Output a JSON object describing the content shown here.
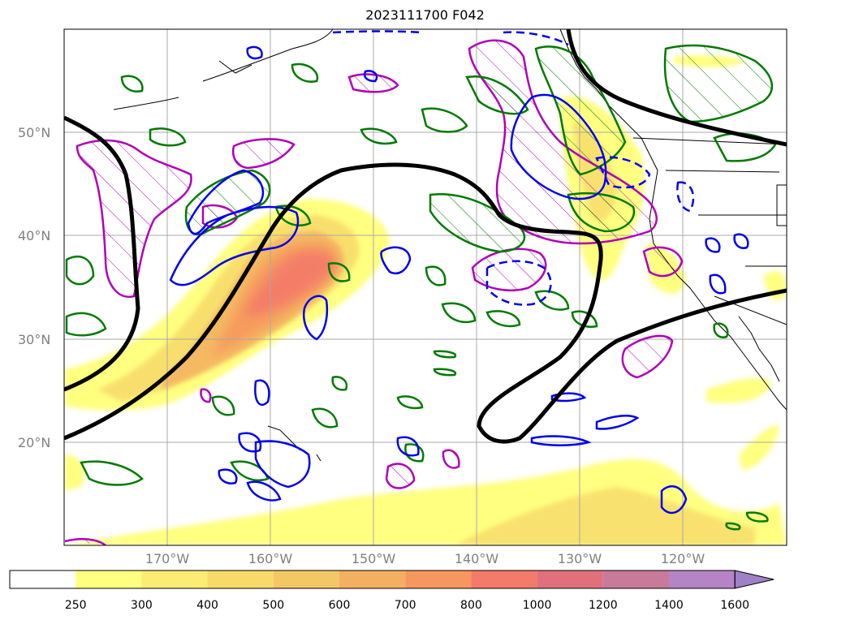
{
  "title": "2023111700 F042",
  "lat_labels": [
    "50°N",
    "40°N",
    "30°N",
    "20°N"
  ],
  "lon_labels": [
    "170°W",
    "160°W",
    "150°W",
    "140°W",
    "130°W",
    "120°W"
  ],
  "colorbar": {
    "levels": [
      "250",
      "300",
      "400",
      "500",
      "600",
      "700",
      "800",
      "1000",
      "1200",
      "1400",
      "1600"
    ],
    "colors": [
      "#ffff80",
      "#fbec74",
      "#f7da6a",
      "#f4c766",
      "#f4b060",
      "#f6975d",
      "#f47a6a",
      "#e0707c",
      "#c97a9a",
      "#b484c6",
      "#a080c8"
    ]
  },
  "contours": {
    "black": "#000000",
    "magenta": "#b000b8",
    "green": "#007a00",
    "blue": "#0000ee"
  }
}
